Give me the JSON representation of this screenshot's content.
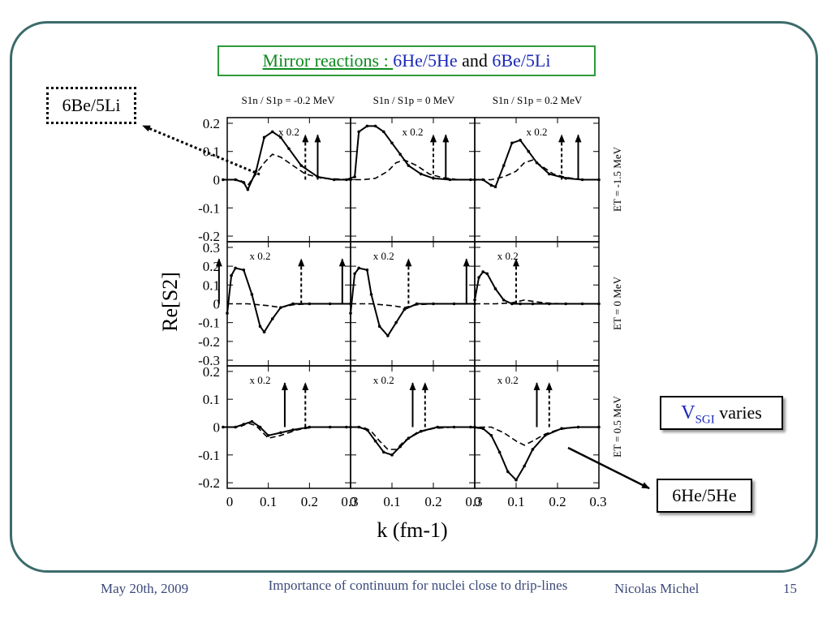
{
  "slide": {
    "title_prefix": "Mirror reactions : ",
    "title_he": "6He/5He",
    "title_and": " and ",
    "title_be": "6Be/5Li",
    "callout_be": "6Be/5Li",
    "callout_he": "6He/5He",
    "callout_vsgi_v": "V",
    "callout_vsgi_sub": "SGI",
    "callout_vsgi_rest": " varies"
  },
  "footer": {
    "date": "May 20th, 2009",
    "title": "Importance of continuum for nuclei close to drip-lines",
    "author": "Nicolas Michel",
    "page": "15"
  },
  "colors": {
    "frame": "#3c6b6b",
    "title_border": "#2e9a3a",
    "mirror_label": "#0e8a1e",
    "nucleus_label": "#1a28b8",
    "footer_text": "#3c4a7a"
  },
  "chart_data": {
    "type": "line",
    "xlabel": "k (fm-1)",
    "ylabel": "Re[S2]",
    "xlim": [
      0,
      0.3
    ],
    "x_ticks": [
      "0",
      "0.1",
      "0.2",
      "0.3"
    ],
    "column_labels": [
      "S1n / S1p = -0.2 MeV",
      "S1n / S1p = 0 MeV",
      "S1n / S1p = 0.2 MeV"
    ],
    "row_labels": [
      "ET = -1.5 MeV",
      "ET = 0 MeV",
      "ET = 0.5 MeV"
    ],
    "rows": [
      {
        "ylim": [
          -0.22,
          0.22
        ],
        "y_ticks": [
          "0.2",
          "0.1",
          "0",
          "-0.1",
          "-0.2"
        ]
      },
      {
        "ylim": [
          -0.33,
          0.33
        ],
        "y_ticks": [
          "0.3",
          "0.2",
          "0.1",
          "0",
          "-0.1",
          "-0.2",
          "-0.3"
        ]
      },
      {
        "ylim": [
          -0.22,
          0.22
        ],
        "y_ticks": [
          "0.2",
          "0.1",
          "0",
          "-0.1",
          "-0.2"
        ]
      }
    ],
    "scale_annotation": "x 0.2",
    "panels": [
      {
        "row": 0,
        "col": 0,
        "solid_x": [
          -0.01,
          0.02,
          0.04,
          0.05,
          0.07,
          0.09,
          0.11,
          0.13,
          0.15,
          0.18,
          0.22,
          0.26,
          0.3
        ],
        "solid_y": [
          0,
          0,
          -0.01,
          -0.035,
          0.03,
          0.15,
          0.17,
          0.15,
          0.11,
          0.05,
          0.01,
          0,
          0
        ],
        "dashed_x": [
          -0.01,
          0.03,
          0.05,
          0.07,
          0.09,
          0.11,
          0.13,
          0.16,
          0.19,
          0.23,
          0.3
        ],
        "dashed_y": [
          0,
          0,
          -0.02,
          0.02,
          0.06,
          0.09,
          0.08,
          0.05,
          0.02,
          0.005,
          0
        ],
        "arrow_solid": 0.22,
        "arrow_dashed": 0.19
      },
      {
        "row": 0,
        "col": 1,
        "solid_x": [
          -0.01,
          0.01,
          0.02,
          0.04,
          0.06,
          0.08,
          0.1,
          0.12,
          0.14,
          0.17,
          0.2,
          0.24,
          0.3
        ],
        "solid_y": [
          0,
          0.01,
          0.17,
          0.19,
          0.19,
          0.17,
          0.13,
          0.09,
          0.05,
          0.02,
          0.005,
          0,
          0
        ],
        "dashed_x": [
          -0.01,
          0.03,
          0.06,
          0.09,
          0.11,
          0.13,
          0.16,
          0.19,
          0.22,
          0.26,
          0.3
        ],
        "dashed_y": [
          0,
          0,
          0.005,
          0.03,
          0.06,
          0.07,
          0.05,
          0.02,
          0.008,
          0,
          0
        ],
        "arrow_solid": 0.23,
        "arrow_dashed": 0.2
      },
      {
        "row": 0,
        "col": 2,
        "solid_x": [
          -0.01,
          0.02,
          0.04,
          0.05,
          0.07,
          0.09,
          0.11,
          0.13,
          0.15,
          0.18,
          0.22,
          0.26,
          0.3
        ],
        "solid_y": [
          0,
          0,
          -0.02,
          -0.025,
          0.05,
          0.13,
          0.14,
          0.1,
          0.06,
          0.02,
          0.005,
          0,
          0
        ],
        "dashed_x": [
          -0.01,
          0.04,
          0.07,
          0.1,
          0.12,
          0.14,
          0.16,
          0.19,
          0.22,
          0.26,
          0.3
        ],
        "dashed_y": [
          0,
          0,
          0.01,
          0.03,
          0.06,
          0.07,
          0.05,
          0.02,
          0.008,
          0,
          0
        ],
        "arrow_solid": 0.25,
        "arrow_dashed": 0.21
      },
      {
        "row": 1,
        "col": 0,
        "solid_x": [
          0,
          0.01,
          0.02,
          0.04,
          0.06,
          0.08,
          0.09,
          0.11,
          0.13,
          0.16,
          0.2,
          0.25,
          0.3
        ],
        "solid_y": [
          -0.05,
          0.15,
          0.19,
          0.18,
          0.05,
          -0.12,
          -0.15,
          -0.08,
          -0.02,
          0,
          0,
          0,
          0
        ],
        "dashed_x": [
          0,
          0.05,
          0.1,
          0.13,
          0.16,
          0.2,
          0.25,
          0.3
        ],
        "dashed_y": [
          0,
          0,
          -0.01,
          -0.02,
          -0.005,
          0,
          0,
          0
        ],
        "arrow_solid": -0.02,
        "arrow_dashed": 0.18
      },
      {
        "row": 1,
        "col": 1,
        "solid_x": [
          0,
          0.01,
          0.02,
          0.04,
          0.05,
          0.07,
          0.09,
          0.11,
          0.13,
          0.16,
          0.2,
          0.25,
          0.3
        ],
        "solid_y": [
          -0.05,
          0.16,
          0.19,
          0.18,
          0.05,
          -0.12,
          -0.17,
          -0.1,
          -0.03,
          0,
          0,
          0,
          0
        ],
        "dashed_x": [
          0,
          0.05,
          0.1,
          0.13,
          0.16,
          0.2,
          0.25,
          0.3
        ],
        "dashed_y": [
          0,
          0,
          -0.01,
          -0.02,
          -0.005,
          0,
          0,
          0
        ],
        "arrow_solid": -0.02,
        "arrow_dashed": 0.14
      },
      {
        "row": 1,
        "col": 2,
        "solid_x": [
          0,
          0.01,
          0.02,
          0.03,
          0.05,
          0.07,
          0.09,
          0.11,
          0.14,
          0.18,
          0.22,
          0.26,
          0.3
        ],
        "solid_y": [
          0.02,
          0.14,
          0.17,
          0.16,
          0.08,
          0.02,
          0,
          0,
          0,
          0,
          0,
          0,
          0
        ],
        "dashed_x": [
          0,
          0.05,
          0.09,
          0.12,
          0.15,
          0.18,
          0.22,
          0.26,
          0.3
        ],
        "dashed_y": [
          0,
          0,
          0.005,
          0.02,
          0.01,
          0.003,
          0,
          0,
          0
        ],
        "arrow_solid": -0.02,
        "arrow_dashed": 0.1
      },
      {
        "row": 2,
        "col": 0,
        "solid_x": [
          -0.01,
          0.02,
          0.04,
          0.06,
          0.08,
          0.1,
          0.13,
          0.16,
          0.2,
          0.25,
          0.3
        ],
        "solid_y": [
          0,
          0,
          0.01,
          0.02,
          0,
          -0.03,
          -0.02,
          -0.01,
          0,
          0,
          0
        ],
        "dashed_x": [
          -0.01,
          0.03,
          0.05,
          0.07,
          0.1,
          0.13,
          0.17,
          0.21,
          0.25,
          0.3
        ],
        "dashed_y": [
          0,
          0,
          0.015,
          0.005,
          -0.04,
          -0.03,
          -0.01,
          0,
          0,
          0
        ],
        "arrow_solid": 0.14,
        "arrow_dashed": 0.19
      },
      {
        "row": 2,
        "col": 1,
        "solid_x": [
          -0.01,
          0.02,
          0.04,
          0.06,
          0.08,
          0.1,
          0.12,
          0.14,
          0.17,
          0.21,
          0.25,
          0.3
        ],
        "solid_y": [
          0,
          0,
          -0.01,
          -0.05,
          -0.09,
          -0.1,
          -0.07,
          -0.04,
          -0.015,
          0,
          0,
          0
        ],
        "dashed_x": [
          -0.01,
          0.03,
          0.05,
          0.07,
          0.09,
          0.11,
          0.13,
          0.16,
          0.2,
          0.25,
          0.3
        ],
        "dashed_y": [
          0,
          0,
          -0.015,
          -0.05,
          -0.08,
          -0.08,
          -0.05,
          -0.02,
          -0.005,
          0,
          0
        ],
        "arrow_solid": 0.15,
        "arrow_dashed": 0.18
      },
      {
        "row": 2,
        "col": 2,
        "solid_x": [
          -0.01,
          0.02,
          0.04,
          0.06,
          0.08,
          0.1,
          0.12,
          0.14,
          0.17,
          0.21,
          0.25,
          0.3
        ],
        "solid_y": [
          0,
          -0.005,
          -0.03,
          -0.09,
          -0.16,
          -0.19,
          -0.14,
          -0.08,
          -0.03,
          -0.005,
          0,
          0
        ],
        "dashed_x": [
          -0.01,
          0.04,
          0.07,
          0.1,
          0.12,
          0.14,
          0.17,
          0.2,
          0.24,
          0.3
        ],
        "dashed_y": [
          0,
          0,
          -0.02,
          -0.05,
          -0.065,
          -0.05,
          -0.025,
          -0.01,
          0,
          0
        ],
        "arrow_solid": 0.15,
        "arrow_dashed": 0.18
      }
    ]
  }
}
